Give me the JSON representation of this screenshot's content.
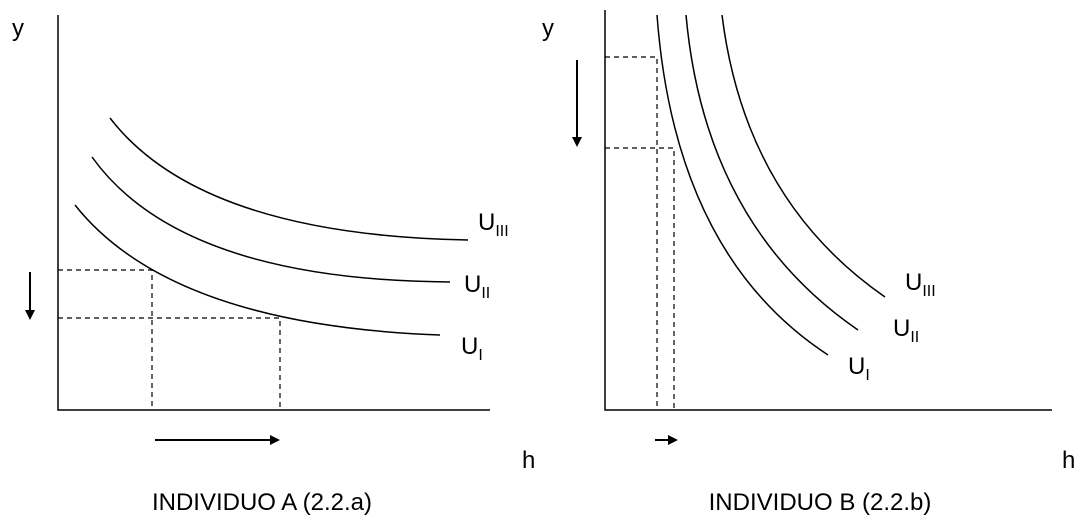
{
  "panels": [
    {
      "y_label": "y",
      "x_label": "h",
      "curves": [
        {
          "label": "U",
          "subscript": "III"
        },
        {
          "label": "U",
          "subscript": "II"
        },
        {
          "label": "U",
          "subscript": "I"
        }
      ],
      "caption": "INDIVIDUO A (2.2.a)"
    },
    {
      "y_label": "y",
      "x_label": "h",
      "curves": [
        {
          "label": "U",
          "subscript": "III"
        },
        {
          "label": "U",
          "subscript": "II"
        },
        {
          "label": "U",
          "subscript": "I"
        }
      ],
      "caption": "INDIVIDUO B (2.2.b)"
    }
  ]
}
